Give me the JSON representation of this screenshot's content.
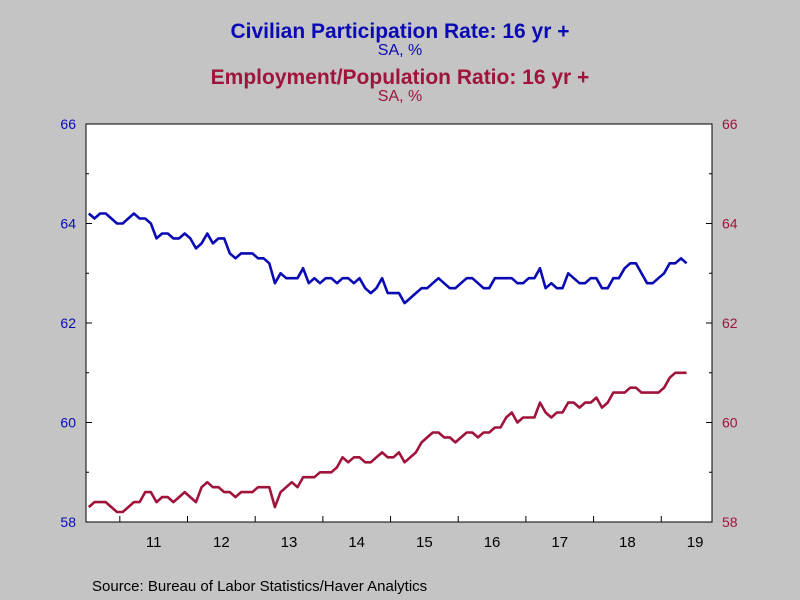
{
  "titles": {
    "series1_title": "Civilian Participation Rate: 16 yr +",
    "series1_subtitle": "SA, %",
    "series2_title": "Employment/Population Ratio: 16 yr +",
    "series2_subtitle": "SA, %"
  },
  "source": "Source:  Bureau of Labor Statistics/Haver Analytics",
  "colors": {
    "series1": "#0a0ab4",
    "series2": "#a0143c",
    "background": "#c4c4c4",
    "plot_bg": "#ffffff"
  },
  "chart_data": {
    "type": "line",
    "title": "",
    "xlabel": "",
    "ylabel": "",
    "x_categories": [
      "11",
      "12",
      "13",
      "14",
      "15",
      "16",
      "17",
      "18",
      "19"
    ],
    "x_range_years": [
      2010.5,
      2019.75
    ],
    "ylim_left": [
      58,
      66
    ],
    "ylim_right": [
      58,
      66
    ],
    "yticks": [
      58,
      60,
      62,
      64,
      66
    ],
    "ytick_labels_left": [
      "58",
      "60",
      "62",
      "64",
      "66"
    ],
    "ytick_labels_right": [
      "58",
      "60",
      "62",
      "64",
      "66"
    ],
    "grid": false,
    "series": [
      {
        "name": "Civilian Participation Rate: 16 yr +",
        "axis": "left",
        "start": "2010-07",
        "frequency": "monthly",
        "values": [
          64.2,
          64.1,
          64.2,
          64.2,
          64.1,
          64.0,
          64.0,
          64.1,
          64.2,
          64.1,
          64.1,
          64.0,
          63.7,
          63.8,
          63.8,
          63.7,
          63.7,
          63.8,
          63.7,
          63.5,
          63.6,
          63.8,
          63.6,
          63.7,
          63.7,
          63.4,
          63.3,
          63.4,
          63.4,
          63.4,
          63.3,
          63.3,
          63.2,
          62.8,
          63.0,
          62.9,
          62.9,
          62.9,
          63.1,
          62.8,
          62.9,
          62.8,
          62.9,
          62.9,
          62.8,
          62.9,
          62.9,
          62.8,
          62.9,
          62.7,
          62.6,
          62.7,
          62.9,
          62.6,
          62.6,
          62.6,
          62.4,
          62.5,
          62.6,
          62.7,
          62.7,
          62.8,
          62.9,
          62.8,
          62.7,
          62.7,
          62.8,
          62.9,
          62.9,
          62.8,
          62.7,
          62.7,
          62.9,
          62.9,
          62.9,
          62.9,
          62.8,
          62.8,
          62.9,
          62.9,
          63.1,
          62.7,
          62.8,
          62.7,
          62.7,
          63.0,
          62.9,
          62.8,
          62.8,
          62.9,
          62.9,
          62.7,
          62.7,
          62.9,
          62.9,
          63.1,
          63.2,
          63.2,
          63.0,
          62.8,
          62.8,
          62.9,
          63.0,
          63.2,
          63.2,
          63.3,
          63.2
        ],
        "color": "#0a0ab4"
      },
      {
        "name": "Employment/Population Ratio: 16 yr +",
        "axis": "right",
        "start": "2010-07",
        "frequency": "monthly",
        "values": [
          58.3,
          58.4,
          58.4,
          58.4,
          58.3,
          58.2,
          58.2,
          58.3,
          58.4,
          58.4,
          58.6,
          58.6,
          58.4,
          58.5,
          58.5,
          58.4,
          58.5,
          58.6,
          58.5,
          58.4,
          58.7,
          58.8,
          58.7,
          58.7,
          58.6,
          58.6,
          58.5,
          58.6,
          58.6,
          58.6,
          58.7,
          58.7,
          58.7,
          58.3,
          58.6,
          58.7,
          58.8,
          58.7,
          58.9,
          58.9,
          58.9,
          59.0,
          59.0,
          59.0,
          59.1,
          59.3,
          59.2,
          59.3,
          59.3,
          59.2,
          59.2,
          59.3,
          59.4,
          59.3,
          59.3,
          59.4,
          59.2,
          59.3,
          59.4,
          59.6,
          59.7,
          59.8,
          59.8,
          59.7,
          59.7,
          59.6,
          59.7,
          59.8,
          59.8,
          59.7,
          59.8,
          59.8,
          59.9,
          59.9,
          60.1,
          60.2,
          60.0,
          60.1,
          60.1,
          60.1,
          60.4,
          60.2,
          60.1,
          60.2,
          60.2,
          60.4,
          60.4,
          60.3,
          60.4,
          60.4,
          60.5,
          60.3,
          60.4,
          60.6,
          60.6,
          60.6,
          60.7,
          60.7,
          60.6,
          60.6,
          60.6,
          60.6,
          60.7,
          60.9,
          61.0,
          61.0,
          61.0
        ],
        "color": "#a0143c"
      }
    ]
  }
}
